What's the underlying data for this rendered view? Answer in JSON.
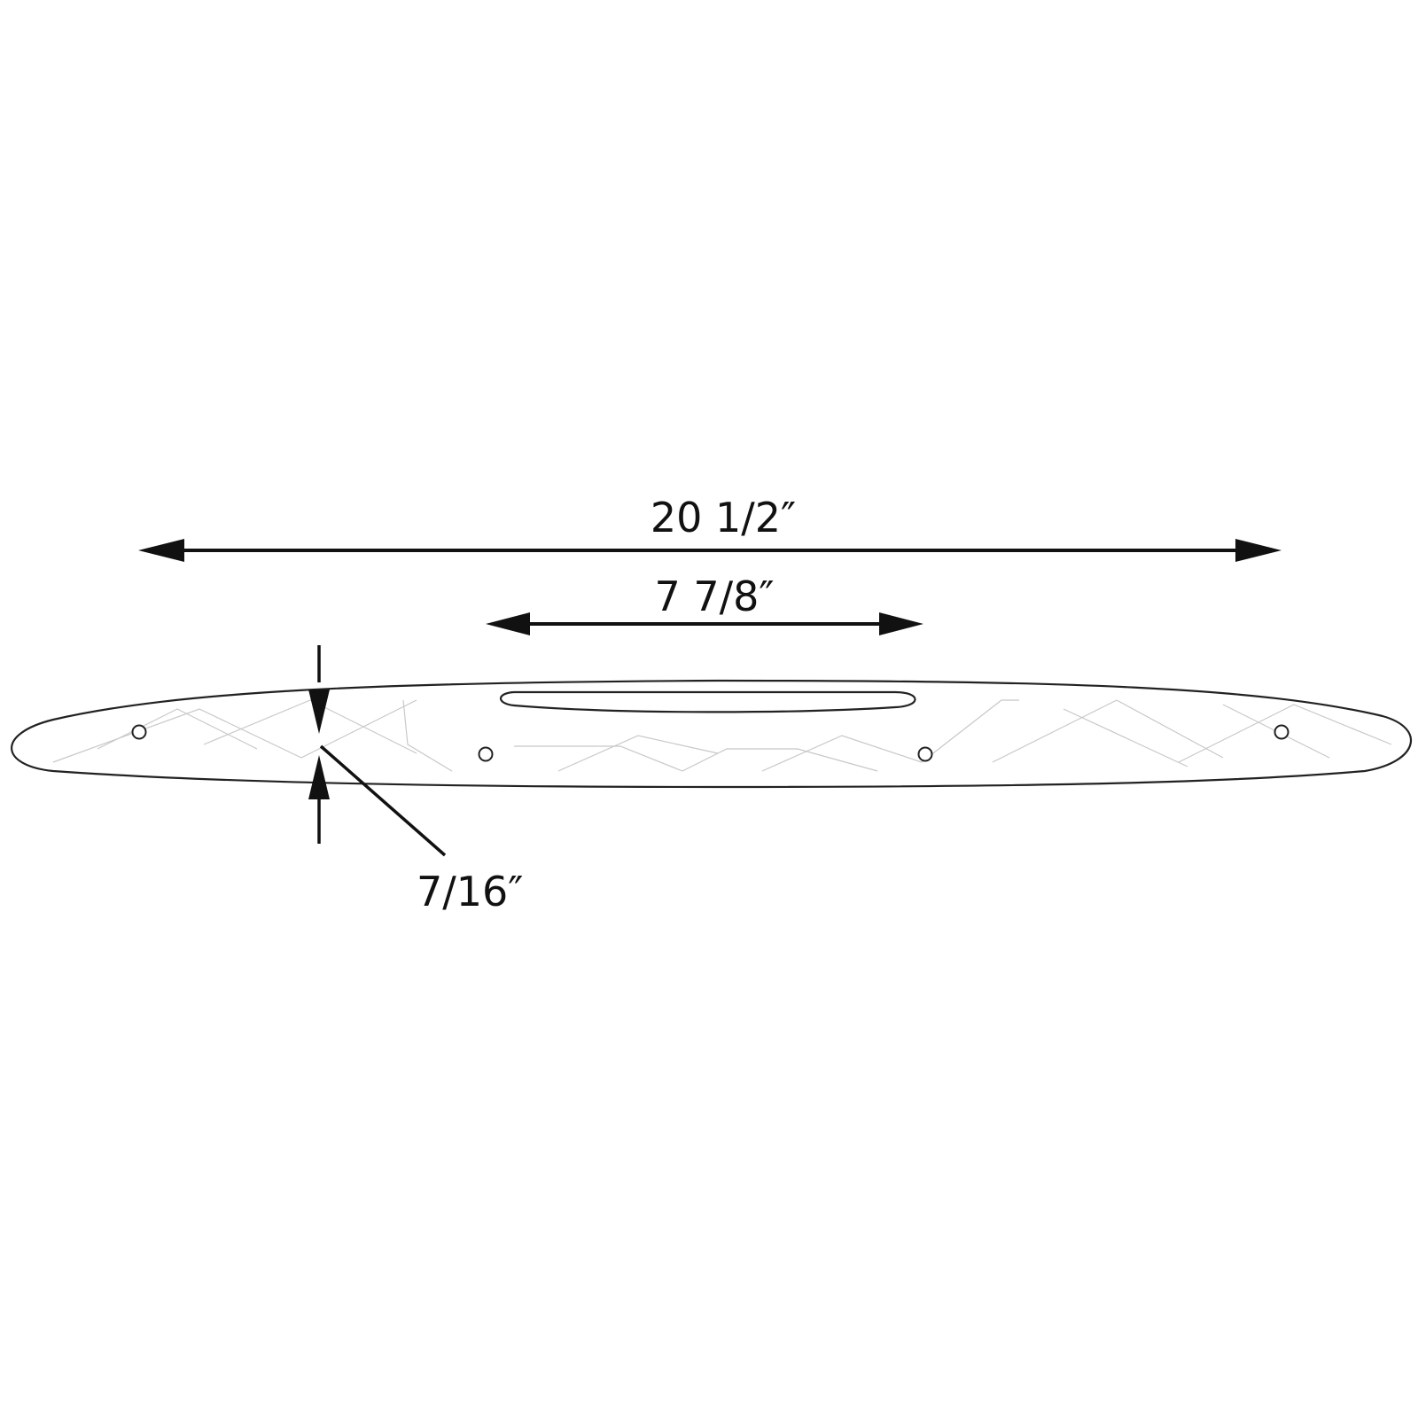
{
  "dimensions": {
    "overall_length": "20 1/2″",
    "slot_length": "7 7/8″",
    "thickness": "7/16″"
  },
  "colors": {
    "line": "#111111",
    "outline": "#222222",
    "pattern": "#c8c8c8",
    "background": "#ffffff"
  }
}
